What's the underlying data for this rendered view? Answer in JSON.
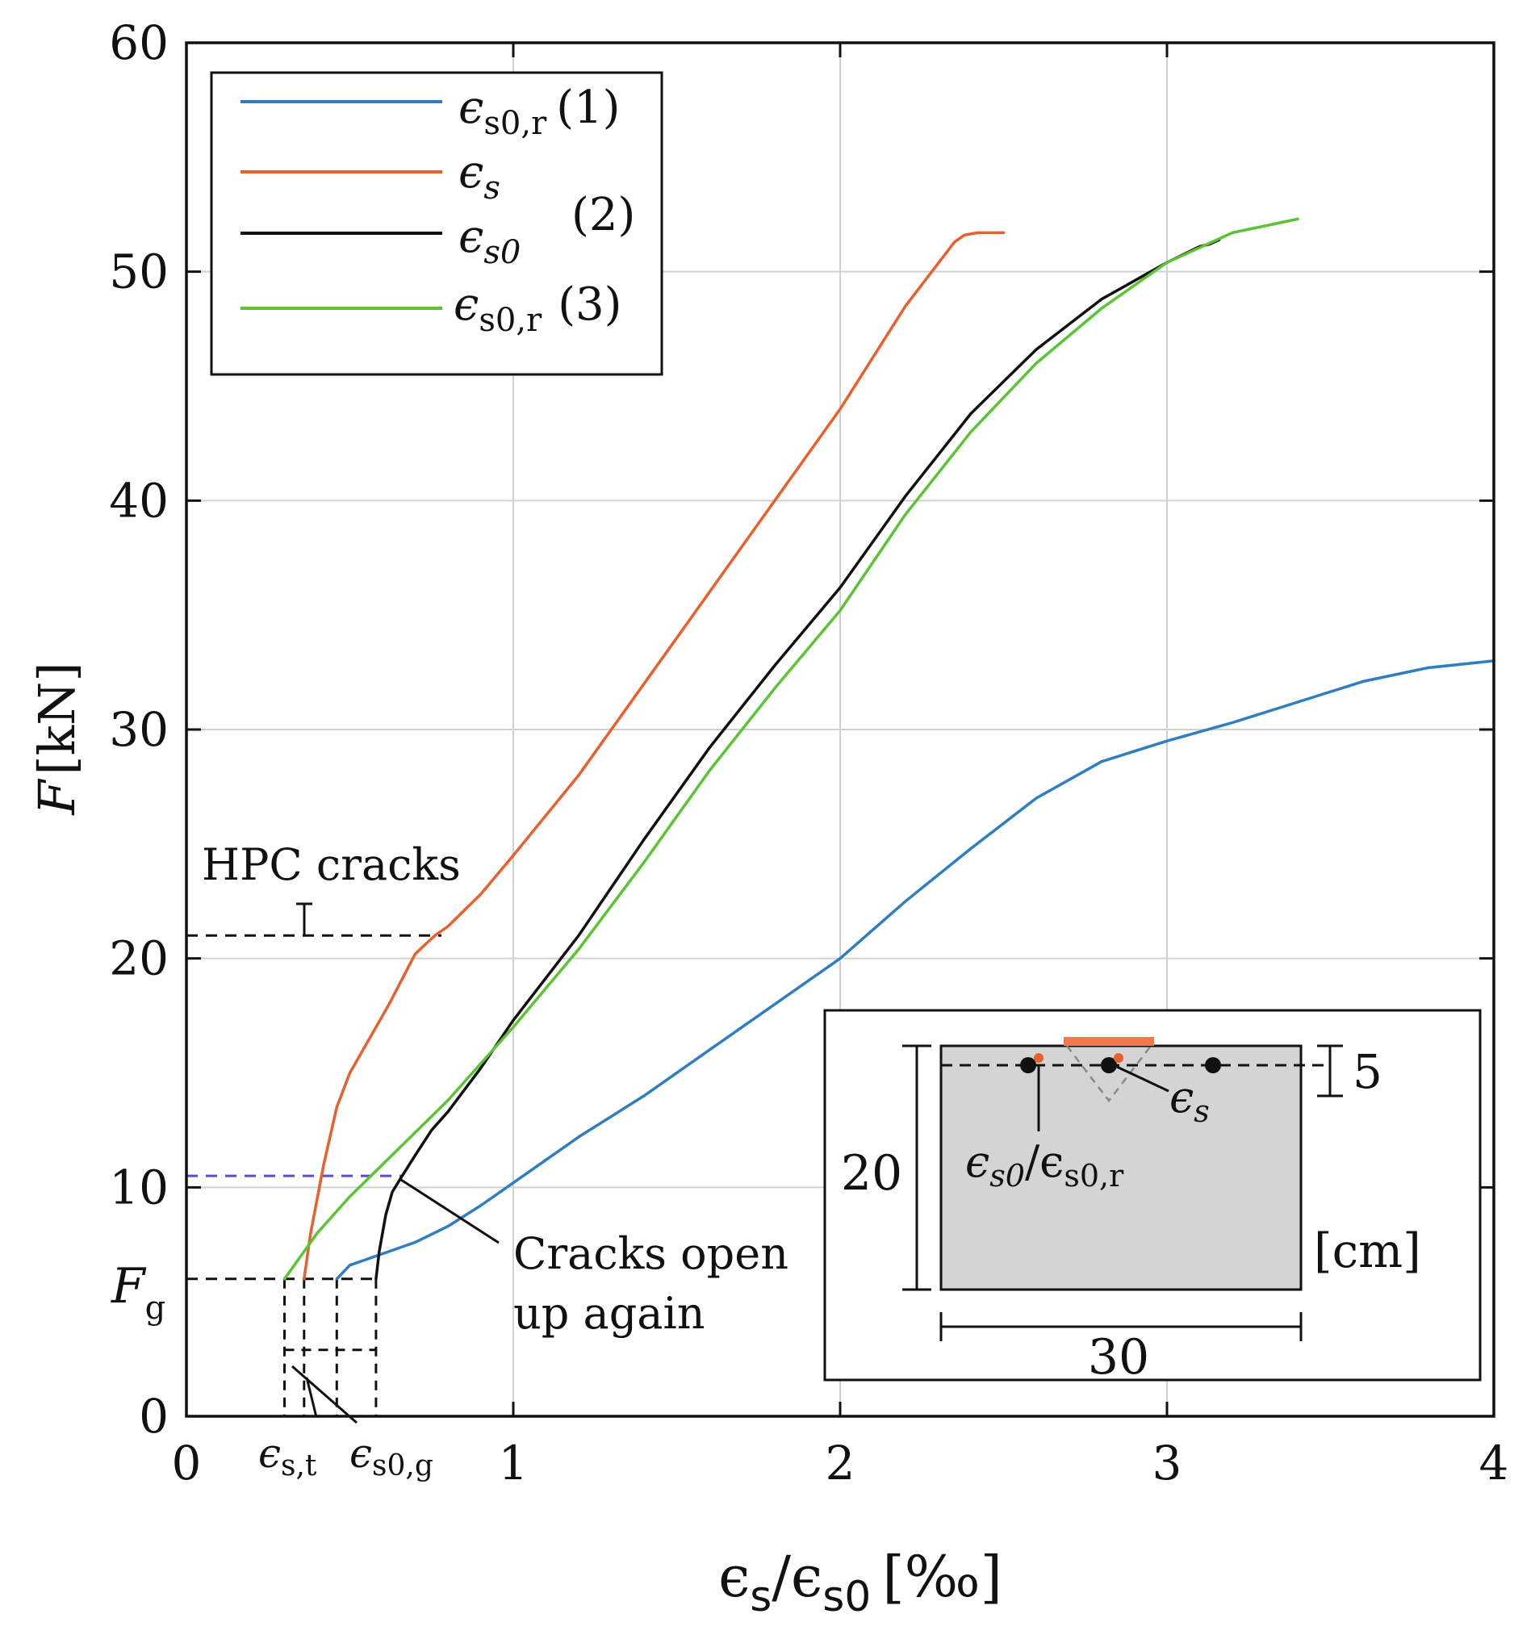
{
  "chart_data": {
    "type": "line",
    "xlabel_parts": {
      "a": "ϵ",
      "a_sub": "s",
      "slash": "/",
      "b": "ϵ",
      "b_sub": "s0",
      "unit": "[‰]"
    },
    "ylabel_parts": {
      "sym": "F",
      "unit": "[kN]"
    },
    "xlim": [
      0,
      4
    ],
    "ylim": [
      0,
      60
    ],
    "grid": true,
    "xticks": [
      0,
      1,
      2,
      3,
      4
    ],
    "yticks": [
      0,
      10,
      20,
      30,
      40,
      50,
      60
    ],
    "xtick_labels": [
      "0",
      "1",
      "2",
      "3",
      "4"
    ],
    "ytick_labels": [
      "0",
      "10",
      "20",
      "30",
      "40",
      "50",
      "60"
    ],
    "series": [
      {
        "name": "ϵ_s0,r (1)",
        "color": "#2E7EC1",
        "x": [
          0.46,
          0.5,
          0.6,
          0.7,
          0.8,
          0.9,
          1.0,
          1.2,
          1.4,
          1.6,
          1.8,
          2.0,
          2.2,
          2.4,
          2.6,
          2.8,
          3.0,
          3.2,
          3.4,
          3.6,
          3.8,
          4.0
        ],
        "y": [
          6.0,
          6.6,
          7.1,
          7.6,
          8.3,
          9.2,
          10.2,
          12.2,
          14.0,
          16.0,
          18.0,
          20.0,
          22.5,
          24.8,
          27.0,
          28.6,
          29.5,
          30.3,
          31.2,
          32.1,
          32.7,
          33.0
        ]
      },
      {
        "name": "ϵ_s",
        "color": "#E8602E",
        "x": [
          0.36,
          0.38,
          0.42,
          0.46,
          0.5,
          0.56,
          0.62,
          0.7,
          0.76,
          0.8,
          0.9,
          1.0,
          1.2,
          1.4,
          1.6,
          1.8,
          2.0,
          2.2,
          2.35,
          2.38,
          2.42,
          2.5
        ],
        "y": [
          6.0,
          8.0,
          11.0,
          13.5,
          15.0,
          16.5,
          18.0,
          20.2,
          21.0,
          21.4,
          22.8,
          24.5,
          28.0,
          32.0,
          36.0,
          40.0,
          44.0,
          48.5,
          51.3,
          51.6,
          51.7,
          51.7
        ]
      },
      {
        "name": "ϵ_s0",
        "color": "#111111",
        "x": [
          0.58,
          0.59,
          0.61,
          0.63,
          0.66,
          0.7,
          0.75,
          0.8,
          0.9,
          1.0,
          1.2,
          1.4,
          1.6,
          1.8,
          2.0,
          2.2,
          2.4,
          2.6,
          2.8,
          3.0,
          3.1,
          3.13,
          3.16
        ],
        "y": [
          6.0,
          7.2,
          8.8,
          9.8,
          10.5,
          11.4,
          12.5,
          13.3,
          15.2,
          17.3,
          21.0,
          25.2,
          29.2,
          32.8,
          36.2,
          40.2,
          43.8,
          46.6,
          48.8,
          50.4,
          51.1,
          51.2,
          51.4
        ]
      },
      {
        "name": "ϵ_s0,r (3)",
        "color": "#5BC434",
        "x": [
          0.3,
          0.4,
          0.5,
          0.6,
          0.7,
          0.8,
          0.9,
          1.0,
          1.2,
          1.4,
          1.6,
          1.8,
          2.0,
          2.2,
          2.4,
          2.6,
          2.8,
          3.0,
          3.2,
          3.3,
          3.4
        ],
        "y": [
          6.0,
          8.0,
          9.6,
          11.0,
          12.4,
          13.8,
          15.4,
          17.0,
          20.4,
          24.2,
          28.2,
          31.8,
          35.2,
          39.4,
          43.0,
          46.0,
          48.4,
          50.4,
          51.7,
          52.0,
          52.3
        ]
      }
    ],
    "reference_lines": [
      {
        "label": "HPC cracks",
        "y": 21,
        "x_end": 0.78,
        "color": "#111111",
        "style": "dashed"
      },
      {
        "label": "",
        "y": 10.5,
        "x_end": 0.66,
        "color": "#5A4FC4",
        "style": "dashed"
      },
      {
        "label": "F_g",
        "y": 6,
        "x_end": 0.58,
        "color": "#111111",
        "style": "dashed"
      }
    ],
    "vertical_guides_x": [
      0.3,
      0.36,
      0.46,
      0.58
    ],
    "annotations": {
      "hpc_cracks": "HPC cracks",
      "cracks_open_line1": "Cracks open",
      "cracks_open_line2": "up again",
      "fg_sym": "F",
      "fg_sub": "g",
      "eps_st_sym": "ϵ",
      "eps_st_sub": "s,t",
      "eps_s0g_sym": "ϵ",
      "eps_s0g_sub": "s0,g"
    },
    "legend": {
      "location": "top-left",
      "entries": [
        {
          "sym": "ϵ",
          "sub": "s0,r",
          "tag": "(1)",
          "color": "#2E7EC1"
        },
        {
          "sym": "ϵ",
          "sub": "s",
          "tag": "",
          "color": "#E8602E"
        },
        {
          "sym": "ϵ",
          "sub": "s0",
          "tag": "",
          "color": "#111111"
        },
        {
          "sym": "ϵ",
          "sub": "s0,r",
          "tag": "(3)",
          "color": "#5BC434"
        }
      ],
      "group_tag": "(2)"
    },
    "inset": {
      "height_label": "20",
      "width_label": "30",
      "depth_label": "5",
      "unit_label": "[cm]",
      "eps_s_label_sym": "ϵ",
      "eps_s_label_sub": "s",
      "eps_s0_label": "ϵ",
      "eps_s0_sub": "s0",
      "eps_s0r_label": "/ϵ",
      "eps_s0r_sub": "s0,r",
      "section_fill": "#D4D4D4",
      "bar_color": "#F0784A"
    }
  }
}
